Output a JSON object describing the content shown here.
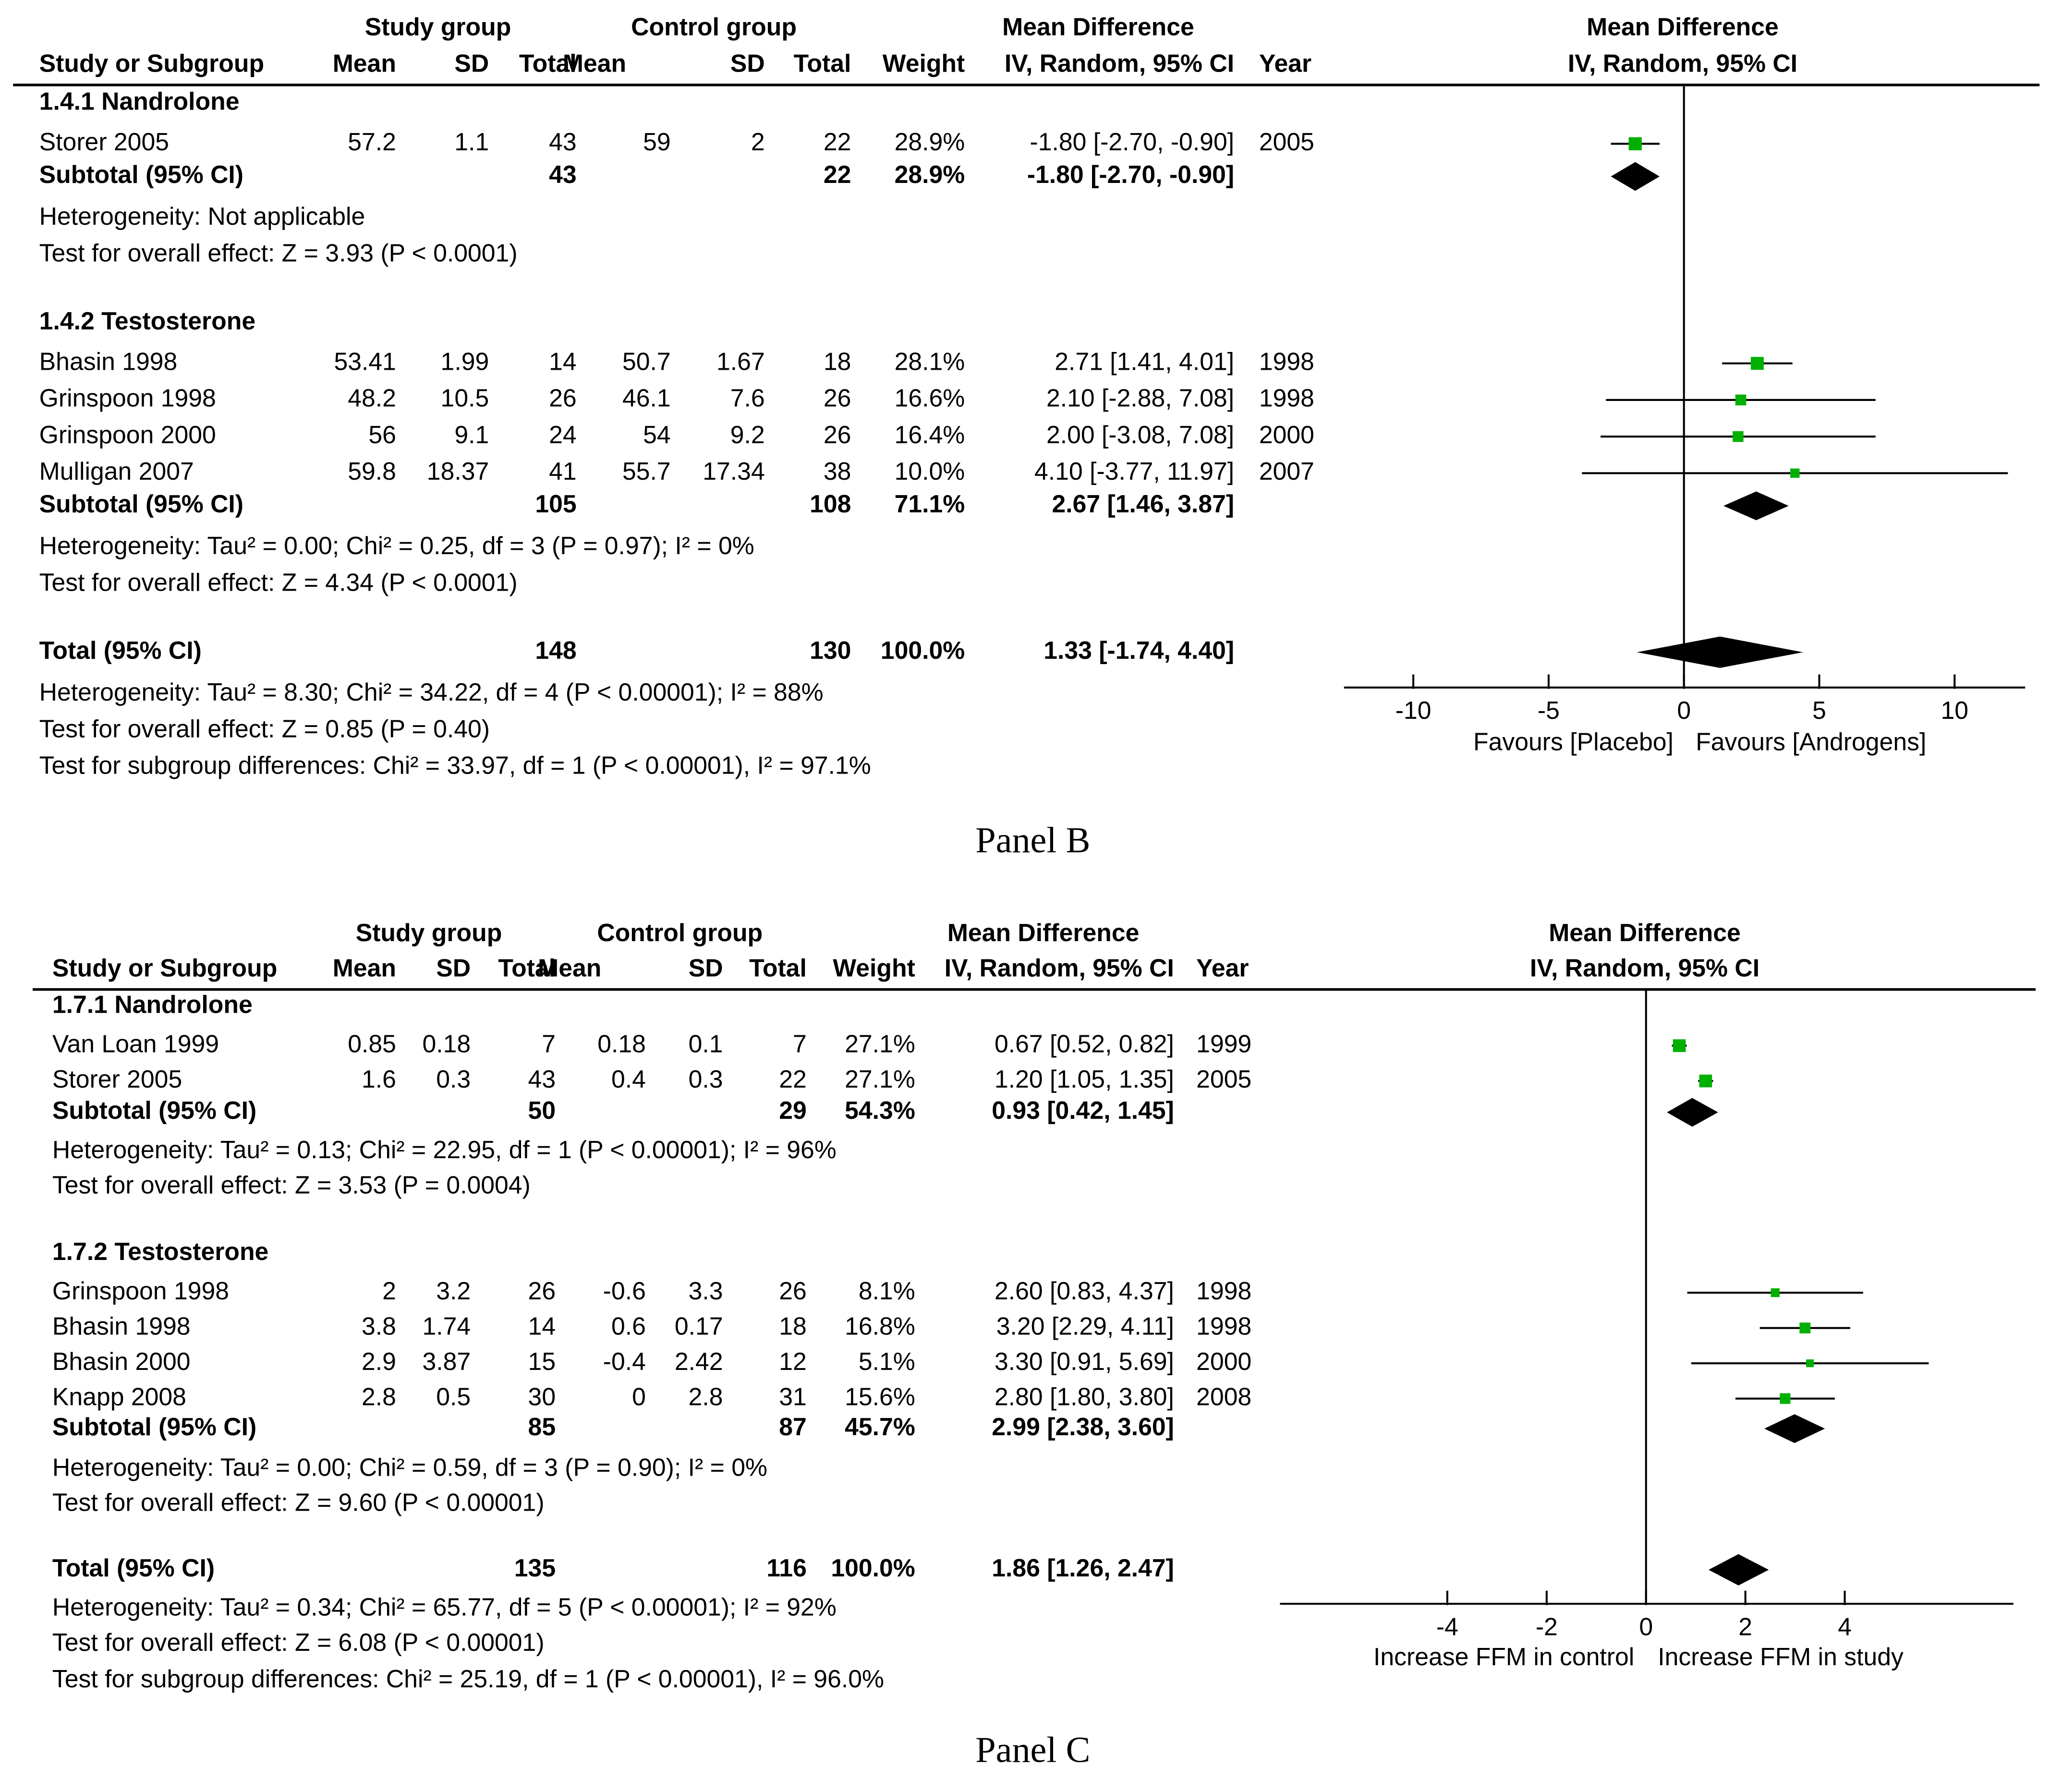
{
  "chart_data": [
    {
      "type": "forest",
      "panel": "Panel B",
      "headers": {
        "study_group": "Study group",
        "control_group": "Control group",
        "mean_difference": "Mean Difference",
        "study_or_subgroup": "Study or Subgroup",
        "mean": "Mean",
        "sd": "SD",
        "total": "Total",
        "weight": "Weight",
        "method": "IV, Random, 95% CI",
        "year": "Year"
      },
      "subgroups": [
        {
          "name": "1.4.1 Nandrolone",
          "studies": [
            {
              "name": "Storer 2005",
              "s_mean": "57.2",
              "s_sd": "1.1",
              "s_total": "43",
              "c_mean": "59",
              "c_sd": "2",
              "c_total": "22",
              "weight": "28.9%",
              "ci_text": "-1.80 [-2.70, -0.90]",
              "year": "2005",
              "md": -1.8,
              "lo": -2.7,
              "hi": -0.9,
              "w": 28.9
            }
          ],
          "subtotal": {
            "label": "Subtotal (95% CI)",
            "s_total": "43",
            "c_total": "22",
            "weight": "28.9%",
            "ci_text": "-1.80 [-2.70, -0.90]",
            "md": -1.8,
            "lo": -2.7,
            "hi": -0.9
          },
          "heterogeneity": "Heterogeneity: Not applicable",
          "overall": "Test for overall effect: Z = 3.93 (P < 0.0001)"
        },
        {
          "name": "1.4.2 Testosterone",
          "studies": [
            {
              "name": "Bhasin 1998",
              "s_mean": "53.41",
              "s_sd": "1.99",
              "s_total": "14",
              "c_mean": "50.7",
              "c_sd": "1.67",
              "c_total": "18",
              "weight": "28.1%",
              "ci_text": "2.71 [1.41, 4.01]",
              "year": "1998",
              "md": 2.71,
              "lo": 1.41,
              "hi": 4.01,
              "w": 28.1
            },
            {
              "name": "Grinspoon 1998",
              "s_mean": "48.2",
              "s_sd": "10.5",
              "s_total": "26",
              "c_mean": "46.1",
              "c_sd": "7.6",
              "c_total": "26",
              "weight": "16.6%",
              "ci_text": "2.10 [-2.88, 7.08]",
              "year": "1998",
              "md": 2.1,
              "lo": -2.88,
              "hi": 7.08,
              "w": 16.6
            },
            {
              "name": "Grinspoon 2000",
              "s_mean": "56",
              "s_sd": "9.1",
              "s_total": "24",
              "c_mean": "54",
              "c_sd": "9.2",
              "c_total": "26",
              "weight": "16.4%",
              "ci_text": "2.00 [-3.08, 7.08]",
              "year": "2000",
              "md": 2.0,
              "lo": -3.08,
              "hi": 7.08,
              "w": 16.4
            },
            {
              "name": "Mulligan 2007",
              "s_mean": "59.8",
              "s_sd": "18.37",
              "s_total": "41",
              "c_mean": "55.7",
              "c_sd": "17.34",
              "c_total": "38",
              "weight": "10.0%",
              "ci_text": "4.10 [-3.77, 11.97]",
              "year": "2007",
              "md": 4.1,
              "lo": -3.77,
              "hi": 11.97,
              "w": 10.0
            }
          ],
          "subtotal": {
            "label": "Subtotal (95% CI)",
            "s_total": "105",
            "c_total": "108",
            "weight": "71.1%",
            "ci_text": "2.67 [1.46, 3.87]",
            "md": 2.67,
            "lo": 1.46,
            "hi": 3.87
          },
          "heterogeneity": "Heterogeneity: Tau² = 0.00; Chi² = 0.25, df = 3 (P = 0.97); I² = 0%",
          "overall": "Test for overall effect: Z = 4.34 (P < 0.0001)"
        }
      ],
      "total": {
        "label": "Total (95% CI)",
        "s_total": "148",
        "c_total": "130",
        "weight": "100.0%",
        "ci_text": "1.33 [-1.74, 4.40]",
        "md": 1.33,
        "lo": -1.74,
        "hi": 4.4
      },
      "total_heterogeneity": "Heterogeneity: Tau² = 8.30; Chi² = 34.22, df = 4 (P < 0.00001); I² = 88%",
      "total_overall": "Test for overall effect: Z = 0.85 (P = 0.40)",
      "subgroup_diff": "Test for subgroup differences: Chi² = 33.97, df = 1 (P < 0.00001), I² = 97.1%",
      "axis": {
        "min": -12.5,
        "max": 12,
        "ticks": [
          -10,
          -5,
          0,
          5,
          10
        ],
        "tick_labels": [
          "-10",
          "-5",
          "0",
          "5",
          "10"
        ]
      },
      "favours_left": "Favours [Placebo]",
      "favours_right": "Favours [Androgens]"
    },
    {
      "type": "forest",
      "panel": "Panel C",
      "headers": {
        "study_group": "Study group",
        "control_group": "Control group",
        "mean_difference": "Mean Difference",
        "study_or_subgroup": "Study or Subgroup",
        "mean": "Mean",
        "sd": "SD",
        "total": "Total",
        "weight": "Weight",
        "method": "IV, Random, 95% CI",
        "year": "Year"
      },
      "subgroups": [
        {
          "name": "1.7.1 Nandrolone",
          "studies": [
            {
              "name": "Van Loan 1999",
              "s_mean": "0.85",
              "s_sd": "0.18",
              "s_total": "7",
              "c_mean": "0.18",
              "c_sd": "0.1",
              "c_total": "7",
              "weight": "27.1%",
              "ci_text": "0.67 [0.52, 0.82]",
              "year": "1999",
              "md": 0.67,
              "lo": 0.52,
              "hi": 0.82,
              "w": 27.1
            },
            {
              "name": "Storer 2005",
              "s_mean": "1.6",
              "s_sd": "0.3",
              "s_total": "43",
              "c_mean": "0.4",
              "c_sd": "0.3",
              "c_total": "22",
              "weight": "27.1%",
              "ci_text": "1.20 [1.05, 1.35]",
              "year": "2005",
              "md": 1.2,
              "lo": 1.05,
              "hi": 1.35,
              "w": 27.1
            }
          ],
          "subtotal": {
            "label": "Subtotal (95% CI)",
            "s_total": "50",
            "c_total": "29",
            "weight": "54.3%",
            "ci_text": "0.93 [0.42, 1.45]",
            "md": 0.93,
            "lo": 0.42,
            "hi": 1.45
          },
          "heterogeneity": "Heterogeneity: Tau² = 0.13; Chi² = 22.95, df = 1 (P < 0.00001); I² = 96%",
          "overall": "Test for overall effect: Z = 3.53 (P = 0.0004)"
        },
        {
          "name": "1.7.2 Testosterone",
          "studies": [
            {
              "name": "Grinspoon 1998",
              "s_mean": "2",
              "s_sd": "3.2",
              "s_total": "26",
              "c_mean": "-0.6",
              "c_sd": "3.3",
              "c_total": "26",
              "weight": "8.1%",
              "ci_text": "2.60 [0.83, 4.37]",
              "year": "1998",
              "md": 2.6,
              "lo": 0.83,
              "hi": 4.37,
              "w": 8.1
            },
            {
              "name": "Bhasin 1998",
              "s_mean": "3.8",
              "s_sd": "1.74",
              "s_total": "14",
              "c_mean": "0.6",
              "c_sd": "0.17",
              "c_total": "18",
              "weight": "16.8%",
              "ci_text": "3.20 [2.29, 4.11]",
              "year": "1998",
              "md": 3.2,
              "lo": 2.29,
              "hi": 4.11,
              "w": 16.8
            },
            {
              "name": "Bhasin 2000",
              "s_mean": "2.9",
              "s_sd": "3.87",
              "s_total": "15",
              "c_mean": "-0.4",
              "c_sd": "2.42",
              "c_total": "12",
              "weight": "5.1%",
              "ci_text": "3.30 [0.91, 5.69]",
              "year": "2000",
              "md": 3.3,
              "lo": 0.91,
              "hi": 5.69,
              "w": 5.1
            },
            {
              "name": "Knapp 2008",
              "s_mean": "2.8",
              "s_sd": "0.5",
              "s_total": "30",
              "c_mean": "0",
              "c_sd": "2.8",
              "c_total": "31",
              "weight": "15.6%",
              "ci_text": "2.80 [1.80, 3.80]",
              "year": "2008",
              "md": 2.8,
              "lo": 1.8,
              "hi": 3.8,
              "w": 15.6
            }
          ],
          "subtotal": {
            "label": "Subtotal (95% CI)",
            "s_total": "85",
            "c_total": "87",
            "weight": "45.7%",
            "ci_text": "2.99 [2.38, 3.60]",
            "md": 2.99,
            "lo": 2.38,
            "hi": 3.6
          },
          "heterogeneity": "Heterogeneity: Tau² = 0.00; Chi² = 0.59, df = 3 (P = 0.90); I² = 0%",
          "overall": "Test for overall effect: Z = 9.60 (P < 0.00001)"
        }
      ],
      "total": {
        "label": "Total (95% CI)",
        "s_total": "135",
        "c_total": "116",
        "weight": "100.0%",
        "ci_text": "1.86 [1.26, 2.47]",
        "md": 1.86,
        "lo": 1.26,
        "hi": 2.47
      },
      "total_heterogeneity": "Heterogeneity: Tau² = 0.34; Chi² = 65.77, df = 5 (P < 0.00001); I² = 92%",
      "total_overall": "Test for overall effect: Z = 6.08 (P < 0.00001)",
      "subgroup_diff": "Test for subgroup differences: Chi² = 25.19, df = 1 (P < 0.00001), I² = 96.0%",
      "axis": {
        "min": -7.2,
        "max": 7.5,
        "ticks": [
          -4,
          -2,
          0,
          2,
          4
        ],
        "tick_labels": [
          "-4",
          "-2",
          "0",
          "2",
          "4"
        ]
      },
      "favours_left": "Increase FFM in control",
      "favours_right": "Increase FFM in study"
    }
  ],
  "colors": {
    "marker": "#00b000",
    "ink": "#000000"
  }
}
